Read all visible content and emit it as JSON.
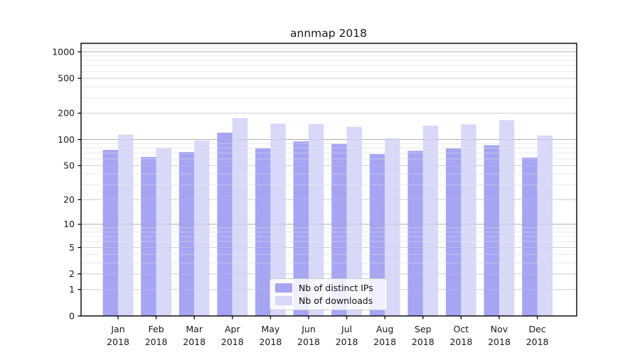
{
  "chart_data": {
    "type": "bar",
    "title": "annmap 2018",
    "categories": [
      "Jan 2018",
      "Feb 2018",
      "Mar 2018",
      "Apr 2018",
      "May 2018",
      "Jun 2018",
      "Jul 2018",
      "Aug 2018",
      "Sep 2018",
      "Oct 2018",
      "Nov 2018",
      "Dec 2018"
    ],
    "series": [
      {
        "name": "Nb of distinct IPs",
        "color": "#a5a5f3",
        "values": [
          76,
          63,
          72,
          120,
          79,
          95,
          89,
          68,
          74,
          79,
          86,
          62
        ]
      },
      {
        "name": "Nb of downloads",
        "color": "#d8d8f9",
        "values": [
          114,
          80,
          97,
          176,
          152,
          151,
          140,
          103,
          144,
          149,
          167,
          111
        ]
      }
    ],
    "yscale": "log1p",
    "ylim": [
      0,
      1250
    ],
    "yticks": [
      0,
      1,
      2,
      5,
      10,
      20,
      50,
      100,
      200,
      500,
      1000
    ],
    "grid": {
      "dark_lines": [
        10,
        100,
        1000
      ],
      "medium_lines": [
        1,
        2,
        5,
        20,
        50,
        200,
        500
      ],
      "minor_lines": [
        3,
        4,
        6,
        7,
        8,
        9,
        30,
        40,
        60,
        70,
        80,
        90,
        300,
        400,
        600,
        700,
        800,
        900,
        1100,
        1200
      ],
      "dark_color": "#b0b0b0",
      "medium_color": "#d2d2d2",
      "minor_color": "#ebebeb"
    },
    "legend": {
      "position": "bottom-center"
    },
    "colors": {
      "spine": "#000000",
      "text": "#1a1a1a",
      "background": "#ffffff"
    }
  }
}
